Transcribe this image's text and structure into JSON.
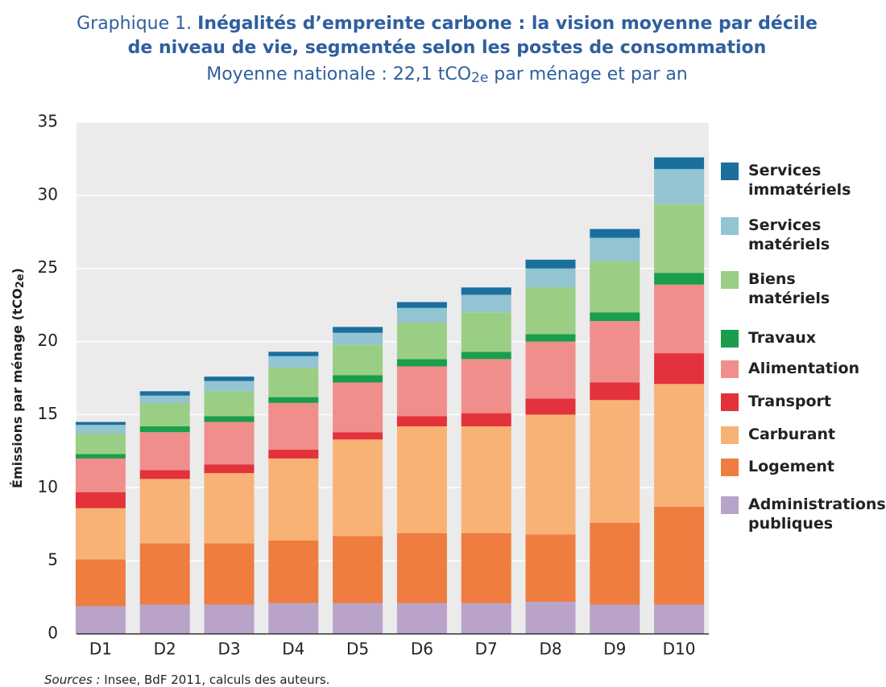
{
  "chart_data": {
    "type": "stacked_bar",
    "title_prefix": "Graphique 1.",
    "title_line1": "Inégalités d’empreinte carbone : la vision moyenne par décile",
    "title_line2": "de niveau de vie, segmentée selon les postes de consommation",
    "subtitle": {
      "before": "Moyenne nationale : 22,1 tCO",
      "sub": "2e",
      "after": " par ménage et par an"
    },
    "ylabel": {
      "before": "Émissions par ménage (tCO",
      "sub": "2e",
      "after": ")"
    },
    "source": {
      "label": "Sources :",
      "text": " Insee, BdF 2011, calculs des auteurs."
    },
    "categories": [
      "D1",
      "D2",
      "D3",
      "D4",
      "D5",
      "D6",
      "D7",
      "D8",
      "D9",
      "D10"
    ],
    "ylim": [
      0,
      35
    ],
    "yticks": [
      0,
      5,
      10,
      15,
      20,
      25,
      30,
      35
    ],
    "grid": true,
    "series": [
      {
        "name": "Administrations publiques",
        "color": "#b9a3c8",
        "values": [
          1.9,
          2.0,
          2.0,
          2.1,
          2.1,
          2.1,
          2.1,
          2.2,
          2.0,
          2.0
        ]
      },
      {
        "name": "Logement",
        "color": "#ee7d3f",
        "values": [
          3.2,
          4.2,
          4.2,
          4.3,
          4.6,
          4.8,
          4.8,
          4.6,
          5.6,
          6.7
        ]
      },
      {
        "name": "Carburant",
        "color": "#f9b275",
        "values": [
          3.5,
          4.4,
          4.8,
          5.6,
          6.6,
          7.3,
          7.3,
          8.2,
          8.4,
          8.4
        ]
      },
      {
        "name": "Transport",
        "color": "#e3323b",
        "values": [
          1.1,
          0.6,
          0.6,
          0.6,
          0.5,
          0.7,
          0.9,
          1.1,
          1.2,
          2.1
        ]
      },
      {
        "name": "Alimentation",
        "color": "#f08e8c",
        "values": [
          2.3,
          2.6,
          2.9,
          3.2,
          3.4,
          3.4,
          3.7,
          3.9,
          4.2,
          4.7
        ]
      },
      {
        "name": "Travaux",
        "color": "#1a9e4c",
        "values": [
          0.3,
          0.4,
          0.4,
          0.4,
          0.5,
          0.5,
          0.5,
          0.5,
          0.6,
          0.8
        ]
      },
      {
        "name": "Biens matériels",
        "color": "#9bce85",
        "values": [
          1.4,
          1.6,
          1.7,
          2.0,
          2.1,
          2.5,
          2.7,
          3.2,
          3.5,
          4.7
        ]
      },
      {
        "name": "Services matériels",
        "color": "#93c4d2",
        "values": [
          0.6,
          0.5,
          0.7,
          0.8,
          0.8,
          1.0,
          1.2,
          1.3,
          1.6,
          2.4
        ]
      },
      {
        "name": "Services immatériels",
        "color": "#1a6f9e",
        "values": [
          0.2,
          0.3,
          0.3,
          0.3,
          0.4,
          0.4,
          0.5,
          0.6,
          0.6,
          0.8
        ]
      }
    ]
  }
}
